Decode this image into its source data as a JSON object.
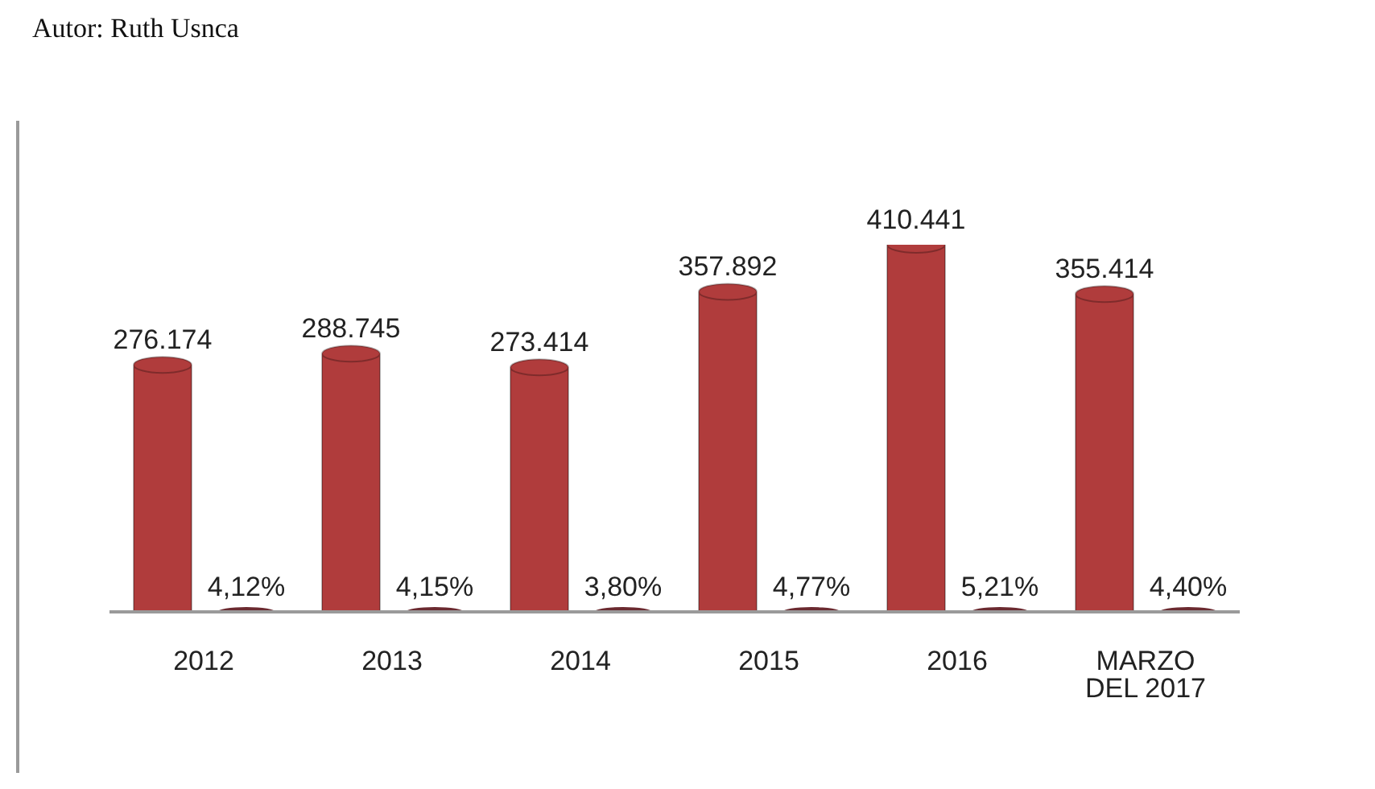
{
  "chart_data": {
    "type": "bar",
    "categories": [
      "2012",
      "2013",
      "2014",
      "2015",
      "2016",
      "MARZO DEL 2017"
    ],
    "series": [
      {
        "color": "#b03c3c",
        "values": [
          276174,
          288745,
          273414,
          357892,
          410441,
          355414
        ],
        "value_labels": [
          "276.174",
          "288.745",
          "273.414",
          "357.892",
          "410.441",
          "355.414"
        ]
      },
      {
        "color": "#6b2a30",
        "values": [
          4.12,
          4.15,
          3.8,
          4.77,
          5.21,
          4.4
        ],
        "value_labels": [
          "4,12%",
          "4,15%",
          "3,80%",
          "4,77%",
          "5,21%",
          "4,40%"
        ]
      }
    ],
    "tick_labels": "x",
    "annotations": [
      "Autor: Ruth Usnca"
    ]
  }
}
